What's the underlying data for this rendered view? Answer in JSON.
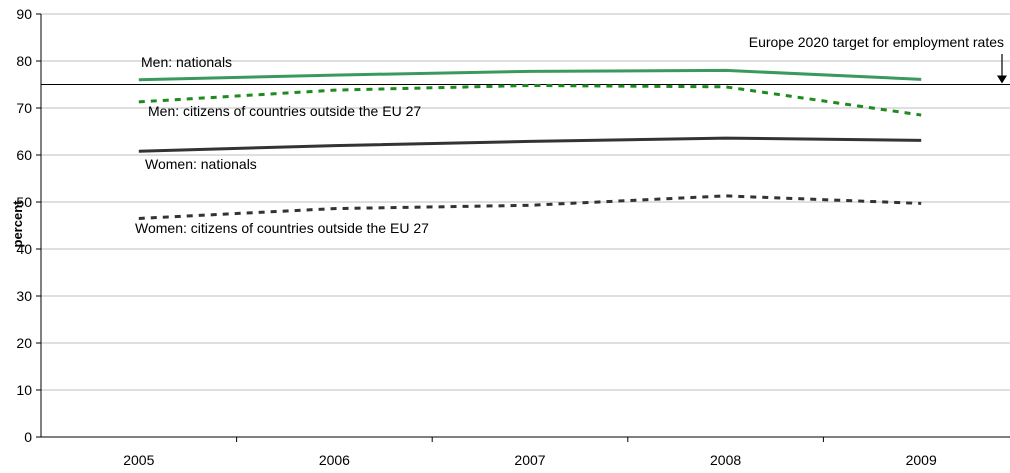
{
  "chart_data": {
    "type": "line",
    "ylabel": "percent",
    "xlabel": "",
    "ylim": [
      0,
      90
    ],
    "yticks": [
      0,
      10,
      20,
      30,
      40,
      50,
      60,
      70,
      80,
      90
    ],
    "categories": [
      "2005",
      "2006",
      "2007",
      "2008",
      "2009"
    ],
    "grid": "horizontal",
    "series": [
      {
        "name": "Men: nationals",
        "values": [
          76.0,
          77.0,
          77.8,
          78.0,
          76.1
        ],
        "color": "#3a9a5e",
        "style": "solid"
      },
      {
        "name": "Men: citizens of countries outside the EU 27",
        "values": [
          71.3,
          73.8,
          74.8,
          74.5,
          68.5
        ],
        "color": "#1f8a1f",
        "style": "dashed"
      },
      {
        "name": "Women: nationals",
        "values": [
          60.8,
          62.0,
          62.9,
          63.6,
          63.1
        ],
        "color": "#333333",
        "style": "solid"
      },
      {
        "name": "Women: citizens of countries outside the EU 27",
        "values": [
          46.5,
          48.6,
          49.3,
          51.3,
          49.7
        ],
        "color": "#333333",
        "style": "dashed"
      }
    ],
    "reference_line": {
      "value": 75,
      "label": "Europe 2020 target for employment rates"
    }
  }
}
